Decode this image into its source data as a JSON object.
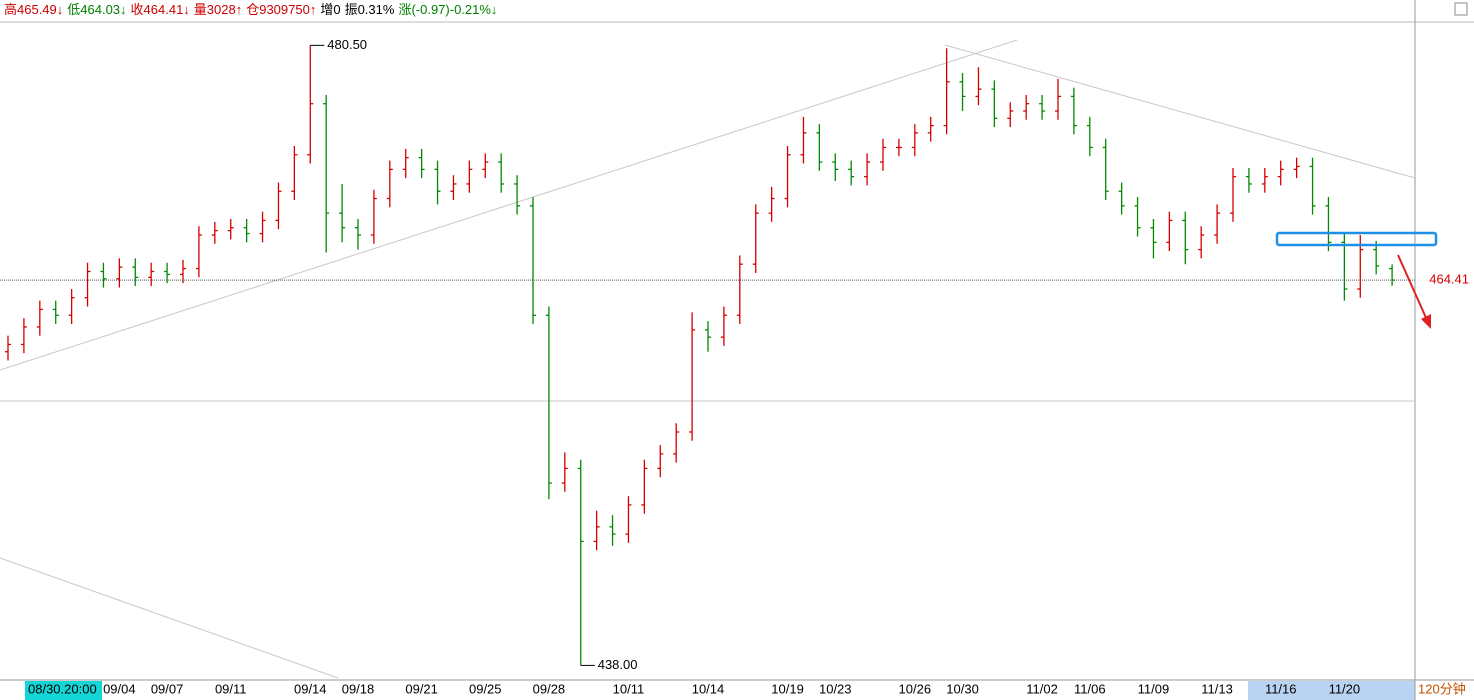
{
  "header": {
    "items": [
      {
        "text": "高465.49↓",
        "color": "#cc0000"
      },
      {
        "text": "低464.03↓",
        "color": "#008000"
      },
      {
        "text": "收464.41↓",
        "color": "#cc0000"
      },
      {
        "text": "量3028↑",
        "color": "#cc0000"
      },
      {
        "text": "仓9309750↑",
        "color": "#cc0000"
      },
      {
        "text": "增0",
        "color": "#000000"
      },
      {
        "text": "振0.31%",
        "color": "#000000"
      },
      {
        "text": "涨(-0.97)-0.21%↓",
        "color": "#008000"
      }
    ]
  },
  "chart_data": {
    "type": "ohlc",
    "ylim": [
      437.0,
      482.1
    ],
    "up_color": "#d40000",
    "down_color": "#008a00",
    "cursor_label": "08/30.20:00",
    "period": "120分钟",
    "last_price": 464.41,
    "annotations": [
      {
        "bar": 19,
        "value": 480.5,
        "label": "480.50",
        "side": "high"
      },
      {
        "bar": 36,
        "value": 438.0,
        "label": "438.00",
        "side": "low"
      }
    ],
    "categories": [
      null,
      null,
      null,
      null,
      null,
      null,
      null,
      "09/04",
      null,
      null,
      "09/07",
      null,
      null,
      null,
      "09/11",
      null,
      null,
      null,
      null,
      "09/14",
      null,
      null,
      "09/18",
      null,
      null,
      null,
      "09/21",
      null,
      null,
      null,
      "09/25",
      null,
      null,
      null,
      "09/28",
      null,
      null,
      null,
      null,
      "10/11",
      null,
      null,
      null,
      null,
      "10/14",
      null,
      null,
      null,
      null,
      "10/19",
      null,
      null,
      "10/23",
      null,
      null,
      null,
      null,
      "10/26",
      null,
      null,
      "10/30",
      null,
      null,
      null,
      null,
      "11/02",
      null,
      null,
      "11/06",
      null,
      null,
      null,
      "11/09",
      null,
      null,
      null,
      "11/13",
      null,
      null,
      null,
      "11/16",
      null,
      null,
      null,
      "11/20",
      null,
      null,
      null
    ],
    "bars": [
      [
        459.5,
        460.6,
        458.9,
        460.0
      ],
      [
        460.0,
        461.8,
        459.4,
        461.2
      ],
      [
        461.2,
        463.0,
        460.6,
        462.4
      ],
      [
        462.4,
        463.0,
        461.4,
        462.0
      ],
      [
        462.0,
        463.8,
        461.4,
        463.2
      ],
      [
        463.2,
        465.6,
        462.6,
        465.0
      ],
      [
        465.0,
        465.6,
        463.9,
        464.5
      ],
      [
        464.5,
        465.9,
        463.9,
        465.3
      ],
      [
        465.3,
        465.9,
        464.0,
        464.6
      ],
      [
        464.6,
        465.6,
        464.0,
        465.0
      ],
      [
        465.0,
        465.6,
        464.2,
        464.8
      ],
      [
        464.8,
        465.8,
        464.2,
        465.2
      ],
      [
        465.2,
        468.1,
        464.6,
        467.5
      ],
      [
        467.5,
        468.4,
        466.9,
        467.8
      ],
      [
        467.8,
        468.6,
        467.2,
        468.0
      ],
      [
        468.0,
        468.6,
        467.0,
        467.6
      ],
      [
        467.6,
        469.1,
        467.0,
        468.5
      ],
      [
        468.5,
        471.1,
        467.9,
        470.5
      ],
      [
        470.5,
        473.6,
        469.9,
        473.0
      ],
      [
        473.0,
        480.5,
        472.4,
        476.5
      ],
      [
        476.5,
        477.1,
        466.3,
        469.0
      ],
      [
        469.0,
        471.0,
        467.0,
        468.0
      ],
      [
        468.0,
        468.6,
        466.5,
        467.5
      ],
      [
        467.5,
        470.6,
        466.9,
        470.0
      ],
      [
        470.0,
        472.6,
        469.4,
        472.0
      ],
      [
        472.0,
        473.4,
        471.4,
        472.8
      ],
      [
        472.8,
        473.4,
        471.4,
        472.0
      ],
      [
        472.0,
        472.6,
        469.6,
        470.5
      ],
      [
        470.5,
        471.6,
        469.9,
        471.0
      ],
      [
        471.0,
        472.6,
        470.4,
        472.0
      ],
      [
        472.0,
        473.1,
        471.4,
        472.5
      ],
      [
        472.5,
        473.1,
        470.4,
        471.0
      ],
      [
        471.0,
        471.6,
        468.9,
        469.5
      ],
      [
        469.5,
        470.1,
        461.4,
        462.0
      ],
      [
        462.0,
        462.6,
        449.4,
        450.5
      ],
      [
        450.5,
        452.6,
        449.9,
        451.5
      ],
      [
        451.5,
        452.1,
        438.0,
        446.5
      ],
      [
        446.5,
        448.6,
        445.9,
        447.5
      ],
      [
        447.5,
        448.3,
        446.2,
        447.0
      ],
      [
        447.0,
        449.6,
        446.4,
        449.0
      ],
      [
        449.0,
        452.1,
        448.4,
        451.5
      ],
      [
        451.5,
        453.1,
        450.9,
        452.5
      ],
      [
        452.5,
        454.6,
        451.9,
        454.0
      ],
      [
        454.0,
        462.2,
        453.4,
        461.0
      ],
      [
        461.0,
        461.6,
        459.5,
        460.5
      ],
      [
        460.5,
        462.6,
        459.9,
        462.0
      ],
      [
        462.0,
        466.1,
        461.4,
        465.5
      ],
      [
        465.5,
        469.6,
        464.9,
        469.0
      ],
      [
        469.0,
        470.8,
        468.4,
        470.0
      ],
      [
        470.0,
        473.6,
        469.4,
        473.0
      ],
      [
        473.0,
        475.6,
        472.4,
        474.5
      ],
      [
        474.5,
        475.1,
        471.9,
        472.5
      ],
      [
        472.5,
        473.1,
        471.2,
        472.0
      ],
      [
        472.0,
        472.6,
        470.9,
        471.5
      ],
      [
        471.5,
        473.1,
        470.9,
        472.5
      ],
      [
        472.5,
        474.1,
        471.9,
        473.5
      ],
      [
        473.5,
        474.1,
        472.9,
        473.5
      ],
      [
        473.5,
        475.1,
        472.9,
        474.5
      ],
      [
        474.5,
        475.6,
        473.9,
        475.0
      ],
      [
        475.0,
        480.3,
        474.4,
        478.0
      ],
      [
        478.0,
        478.6,
        476.0,
        477.0
      ],
      [
        477.0,
        479.0,
        476.4,
        477.5
      ],
      [
        477.5,
        478.1,
        474.9,
        475.5
      ],
      [
        475.5,
        476.6,
        474.9,
        476.0
      ],
      [
        476.0,
        477.1,
        475.4,
        476.5
      ],
      [
        476.5,
        477.1,
        475.4,
        476.0
      ],
      [
        476.0,
        478.2,
        475.4,
        477.0
      ],
      [
        477.0,
        477.6,
        474.4,
        475.0
      ],
      [
        475.0,
        475.6,
        472.9,
        473.5
      ],
      [
        473.5,
        474.1,
        469.9,
        470.5
      ],
      [
        470.5,
        471.1,
        468.9,
        469.5
      ],
      [
        469.5,
        470.1,
        467.4,
        468.0
      ],
      [
        468.0,
        468.6,
        465.9,
        467.0
      ],
      [
        467.0,
        469.1,
        466.4,
        468.5
      ],
      [
        468.5,
        469.1,
        465.5,
        466.5
      ],
      [
        466.5,
        468.1,
        465.9,
        467.5
      ],
      [
        467.5,
        469.6,
        466.9,
        469.0
      ],
      [
        469.0,
        472.1,
        468.4,
        471.5
      ],
      [
        471.5,
        472.1,
        470.4,
        471.0
      ],
      [
        471.0,
        472.1,
        470.4,
        471.5
      ],
      [
        471.5,
        472.6,
        470.9,
        472.0
      ],
      [
        472.0,
        472.8,
        471.4,
        472.2
      ],
      [
        472.2,
        472.8,
        468.9,
        469.5
      ],
      [
        469.5,
        470.1,
        466.4,
        467.0
      ],
      [
        467.0,
        467.6,
        463.0,
        463.8
      ],
      [
        463.8,
        467.5,
        463.2,
        466.5
      ],
      [
        466.5,
        467.1,
        464.8,
        465.38
      ],
      [
        465.2,
        465.49,
        464.03,
        464.41
      ]
    ]
  }
}
